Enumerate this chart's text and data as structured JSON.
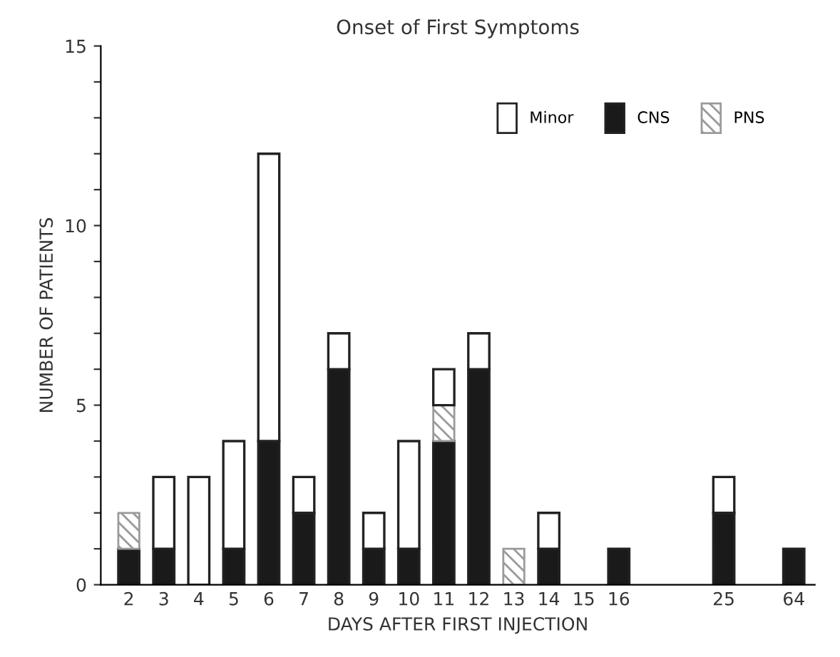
{
  "chart_data": {
    "type": "bar",
    "title": "Onset of First Symptoms",
    "xlabel": "DAYS AFTER FIRST INJECTION",
    "ylabel": "NUMBER OF PATIENTS",
    "categories": [
      "2",
      "3",
      "4",
      "5",
      "6",
      "7",
      "8",
      "9",
      "10",
      "11",
      "12",
      "13",
      "14",
      "15",
      "16",
      null,
      null,
      "25",
      null,
      "64"
    ],
    "stacked": true,
    "series": [
      {
        "name": "CNS",
        "color": "#1a1a1a",
        "values": [
          1,
          1,
          0,
          1,
          4,
          2,
          6,
          1,
          1,
          4,
          6,
          0,
          1,
          0,
          1,
          null,
          null,
          2,
          null,
          1
        ]
      },
      {
        "name": "PNS",
        "color": "#9a9a9a",
        "values": [
          1,
          0,
          0,
          0,
          0,
          0,
          0,
          0,
          0,
          1,
          0,
          1,
          0,
          0,
          0,
          null,
          null,
          0,
          null,
          0
        ]
      },
      {
        "name": "Minor",
        "color": "#ffffff",
        "values": [
          0,
          2,
          3,
          3,
          8,
          1,
          1,
          1,
          3,
          1,
          1,
          0,
          1,
          0,
          0,
          null,
          null,
          1,
          null,
          0
        ]
      }
    ],
    "ylim": [
      0,
      15
    ],
    "yticks": [
      0,
      {
        "value": 1,
        "label": null
      },
      {
        "value": 2,
        "label": null
      },
      {
        "value": 3,
        "label": null
      },
      {
        "value": 4,
        "label": null
      },
      5,
      {
        "value": 6,
        "label": null
      },
      {
        "value": 7,
        "label": null
      },
      {
        "value": 8,
        "label": null
      },
      {
        "value": 9,
        "label": null
      },
      10,
      {
        "value": 11,
        "label": null
      },
      {
        "value": 12,
        "label": null
      },
      {
        "value": 13,
        "label": null
      },
      {
        "value": 14,
        "label": null
      },
      15
    ],
    "grid": false,
    "legend": "top right"
  }
}
